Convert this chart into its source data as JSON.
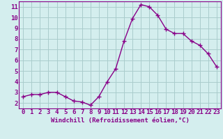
{
  "x": [
    0,
    1,
    2,
    3,
    4,
    5,
    6,
    7,
    8,
    9,
    10,
    11,
    12,
    13,
    14,
    15,
    16,
    17,
    18,
    19,
    20,
    21,
    22,
    23
  ],
  "y": [
    2.6,
    2.8,
    2.8,
    3.0,
    3.0,
    2.6,
    2.2,
    2.1,
    1.8,
    2.6,
    4.0,
    5.2,
    7.8,
    9.9,
    11.2,
    11.0,
    10.2,
    8.9,
    8.5,
    8.5,
    7.8,
    7.4,
    6.6,
    5.4
  ],
  "line_color": "#880088",
  "marker": "+",
  "markersize": 4,
  "markeredgewidth": 1.0,
  "linewidth": 1.0,
  "bg_color": "#d4eeee",
  "grid_color": "#aacccc",
  "xlabel": "Windchill (Refroidissement éolien,°C)",
  "xlabel_fontsize": 6.5,
  "tick_fontsize": 6.5,
  "xlim": [
    -0.5,
    23.5
  ],
  "ylim": [
    1.5,
    11.5
  ],
  "yticks": [
    2,
    3,
    4,
    5,
    6,
    7,
    8,
    9,
    10,
    11
  ],
  "xticks": [
    0,
    1,
    2,
    3,
    4,
    5,
    6,
    7,
    8,
    9,
    10,
    11,
    12,
    13,
    14,
    15,
    16,
    17,
    18,
    19,
    20,
    21,
    22,
    23
  ],
  "spine_color": "#880088",
  "tick_color": "#880088",
  "label_color": "#880088"
}
